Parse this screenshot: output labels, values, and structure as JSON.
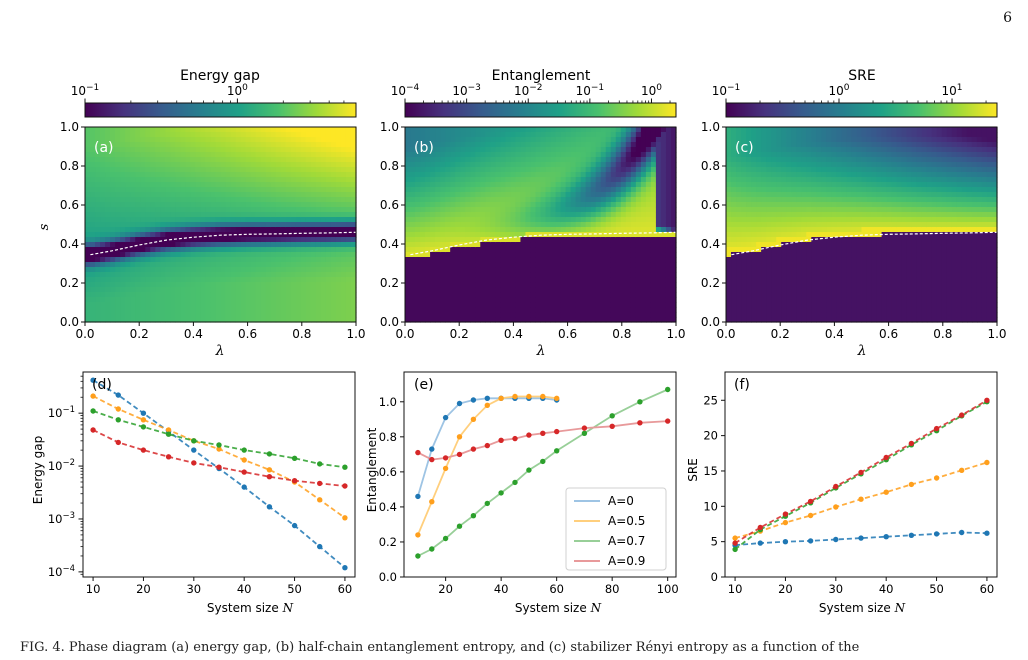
{
  "page_number": "6",
  "caption": "FIG. 4. Phase diagram (a) energy gap, (b) half-chain entanglement entropy, and (c) stabilizer Rényi entropy as a function of the",
  "colormap": [
    "#440154",
    "#46327e",
    "#365c8d",
    "#277f8e",
    "#1fa187",
    "#4ac16d",
    "#a0da39",
    "#fde725"
  ],
  "boundary_color": "#ffffff",
  "chart_data": [
    {
      "type": "heatmap",
      "panel": "(a)",
      "colorbar_title": "Energy gap",
      "colorbar_scale": "log",
      "colorbar_range": [
        0.1,
        6.0
      ],
      "colorbar_ticks": [
        {
          "value": 0.1,
          "base": "10",
          "exp": "−1"
        },
        {
          "value": 1,
          "base": "10",
          "exp": "0"
        }
      ],
      "xlabel": "λ",
      "ylabel": "s",
      "xlim": [
        0,
        1
      ],
      "ylim": [
        0,
        1
      ],
      "xticks": [
        "0.0",
        "0.2",
        "0.4",
        "0.6",
        "0.8",
        "1.0"
      ],
      "yticks": [
        "0.0",
        "0.2",
        "0.4",
        "0.6",
        "0.8",
        "1.0"
      ],
      "critical_line": {
        "lambda": [
          0.02,
          0.1,
          0.2,
          0.3,
          0.4,
          0.5,
          0.6,
          0.7,
          0.8,
          0.9,
          1.0
        ],
        "s": [
          0.345,
          0.365,
          0.395,
          0.42,
          0.435,
          0.445,
          0.45,
          0.452,
          0.455,
          0.457,
          0.46
        ]
      }
    },
    {
      "type": "heatmap",
      "panel": "(b)",
      "colorbar_title": "Entanglement",
      "colorbar_scale": "log",
      "colorbar_range": [
        0.0001,
        2.5
      ],
      "colorbar_ticks": [
        {
          "value": 0.0001,
          "base": "10",
          "exp": "−4"
        },
        {
          "value": 0.001,
          "base": "10",
          "exp": "−3"
        },
        {
          "value": 0.01,
          "base": "10",
          "exp": "−2"
        },
        {
          "value": 0.1,
          "base": "10",
          "exp": "−1"
        },
        {
          "value": 1,
          "base": "10",
          "exp": "0"
        }
      ],
      "xlabel": "λ",
      "ylabel": "",
      "xlim": [
        0,
        1
      ],
      "ylim": [
        0,
        1
      ],
      "xticks": [
        "0.0",
        "0.2",
        "0.4",
        "0.6",
        "0.8",
        "1.0"
      ],
      "yticks": [
        "0.0",
        "0.2",
        "0.4",
        "0.6",
        "0.8",
        "1.0"
      ]
    },
    {
      "type": "heatmap",
      "panel": "(c)",
      "colorbar_title": "SRE",
      "colorbar_scale": "log",
      "colorbar_range": [
        0.1,
        25
      ],
      "colorbar_ticks": [
        {
          "value": 0.1,
          "base": "10",
          "exp": "−1"
        },
        {
          "value": 1,
          "base": "10",
          "exp": "0"
        },
        {
          "value": 10,
          "base": "10",
          "exp": "1"
        }
      ],
      "xlabel": "λ",
      "ylabel": "",
      "xlim": [
        0,
        1
      ],
      "ylim": [
        0,
        1
      ],
      "xticks": [
        "0.0",
        "0.2",
        "0.4",
        "0.6",
        "0.8",
        "1.0"
      ],
      "yticks": [
        "0.0",
        "0.2",
        "0.4",
        "0.6",
        "0.8",
        "1.0"
      ]
    },
    {
      "type": "line",
      "panel": "(d)",
      "xlabel": "System size",
      "xlabel_var": "N",
      "ylabel": "Energy gap",
      "yscale": "log",
      "xlim": [
        8,
        62
      ],
      "ylim": [
        8e-05,
        0.6
      ],
      "xticks": [
        10,
        20,
        30,
        40,
        50,
        60
      ],
      "yticks": [
        {
          "value": 0.0001,
          "base": "10",
          "exp": "−4"
        },
        {
          "value": 0.001,
          "base": "10",
          "exp": "−3"
        },
        {
          "value": 0.01,
          "base": "10",
          "exp": "−2"
        },
        {
          "value": 0.1,
          "base": "10",
          "exp": "−1"
        }
      ],
      "x": [
        10,
        15,
        20,
        25,
        30,
        35,
        40,
        45,
        50,
        55,
        60
      ],
      "series": [
        {
          "color": "#1f77b4",
          "values": [
            0.42,
            0.22,
            0.1,
            0.045,
            0.02,
            0.009,
            0.004,
            0.0017,
            0.00075,
            0.0003,
            0.00012
          ]
        },
        {
          "color": "#ff9f1c",
          "values": [
            0.21,
            0.12,
            0.075,
            0.048,
            0.03,
            0.021,
            0.013,
            0.0085,
            0.005,
            0.0023,
            0.00105
          ]
        },
        {
          "color": "#2ca02c",
          "values": [
            0.11,
            0.075,
            0.055,
            0.04,
            0.03,
            0.025,
            0.02,
            0.017,
            0.014,
            0.011,
            0.0095
          ]
        },
        {
          "color": "#d62728",
          "values": [
            0.048,
            0.028,
            0.02,
            0.015,
            0.0115,
            0.0095,
            0.0077,
            0.0063,
            0.0053,
            0.0047,
            0.0042
          ]
        }
      ]
    },
    {
      "type": "line",
      "panel": "(e)",
      "xlabel": "System size",
      "xlabel_var": "N",
      "ylabel": "Entanglement",
      "xlim": [
        5,
        103
      ],
      "ylim": [
        0,
        1.17
      ],
      "xticks": [
        20,
        40,
        60,
        80,
        100
      ],
      "yticks": [
        0.0,
        0.2,
        0.4,
        0.6,
        0.8,
        1.0
      ],
      "legend_position": "lower-right",
      "series": [
        {
          "name": "A=0",
          "color": "#1f77b4",
          "line_color": "#9ec4e4",
          "x": [
            10,
            15,
            20,
            25,
            30,
            35,
            40,
            45,
            50,
            55,
            60
          ],
          "values": [
            0.46,
            0.73,
            0.91,
            0.99,
            1.01,
            1.02,
            1.02,
            1.02,
            1.02,
            1.02,
            1.01
          ]
        },
        {
          "name": "A=0.5",
          "color": "#ff9f1c",
          "line_color": "#ffcf7d",
          "x": [
            10,
            15,
            20,
            25,
            30,
            35,
            40,
            45,
            50,
            55,
            60
          ],
          "values": [
            0.24,
            0.43,
            0.62,
            0.8,
            0.9,
            0.98,
            1.02,
            1.03,
            1.03,
            1.03,
            1.02
          ]
        },
        {
          "name": "A=0.7",
          "color": "#2ca02c",
          "line_color": "#98cf98",
          "x": [
            10,
            15,
            20,
            25,
            30,
            35,
            40,
            45,
            50,
            55,
            60,
            70,
            80,
            90,
            100
          ],
          "values": [
            0.12,
            0.16,
            0.22,
            0.29,
            0.35,
            0.42,
            0.48,
            0.54,
            0.61,
            0.66,
            0.72,
            0.82,
            0.92,
            1.0,
            1.07
          ]
        },
        {
          "name": "A=0.9",
          "color": "#d62728",
          "line_color": "#e89a9b",
          "x": [
            10,
            15,
            20,
            25,
            30,
            35,
            40,
            45,
            50,
            55,
            60,
            70,
            80,
            90,
            100
          ],
          "values": [
            0.71,
            0.67,
            0.68,
            0.7,
            0.73,
            0.75,
            0.78,
            0.79,
            0.81,
            0.82,
            0.83,
            0.85,
            0.86,
            0.88,
            0.89
          ]
        }
      ]
    },
    {
      "type": "line",
      "panel": "(f)",
      "xlabel": "System size",
      "xlabel_var": "N",
      "ylabel": "SRE",
      "xlim": [
        8,
        62
      ],
      "ylim": [
        0,
        29
      ],
      "xticks": [
        10,
        20,
        30,
        40,
        50,
        60
      ],
      "yticks": [
        0,
        5,
        10,
        15,
        20,
        25
      ],
      "x": [
        10,
        15,
        20,
        25,
        30,
        35,
        40,
        45,
        50,
        55,
        60
      ],
      "series": [
        {
          "color": "#1f77b4",
          "values": [
            4.5,
            4.8,
            5.0,
            5.1,
            5.3,
            5.5,
            5.7,
            5.9,
            6.1,
            6.3,
            6.2
          ]
        },
        {
          "color": "#ff9f1c",
          "values": [
            5.5,
            6.5,
            7.7,
            8.7,
            9.9,
            11.0,
            12.0,
            13.1,
            14.0,
            15.1,
            16.2
          ]
        },
        {
          "color": "#2ca02c",
          "values": [
            3.9,
            6.7,
            8.6,
            10.5,
            12.6,
            14.6,
            16.6,
            18.7,
            20.7,
            22.8,
            24.8
          ]
        },
        {
          "color": "#d62728",
          "values": [
            4.8,
            7.0,
            8.9,
            10.7,
            12.8,
            14.8,
            16.9,
            18.9,
            21.0,
            22.9,
            25.0
          ]
        }
      ]
    }
  ]
}
